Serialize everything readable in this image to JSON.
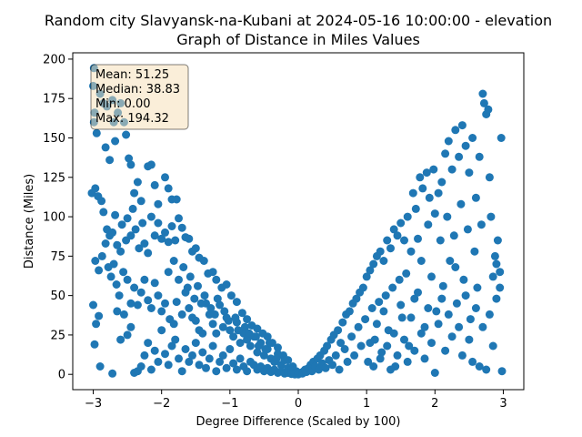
{
  "chart_data": {
    "type": "scatter",
    "title": "Random city Slavyansk-na-Kubani at 2024-05-16 10:00:00  - elevation",
    "subtitle": "Graph of Distance in Miles Values",
    "xlabel": "Degree Difference (Scaled by 100)",
    "ylabel": "Distance (Miles)",
    "xlim": [
      -3.3,
      3.3
    ],
    "ylim": [
      -9.7,
      204
    ],
    "xticks": [
      -3,
      -2,
      -1,
      0,
      1,
      2,
      3
    ],
    "yticks": [
      0,
      25,
      50,
      75,
      100,
      125,
      150,
      175,
      200
    ],
    "grid": false,
    "marker_color": "#1f77b4",
    "stats_box": {
      "lines": [
        "Mean: 51.25",
        "Median: 38.83",
        "Min: 0.00",
        "Max: 194.32"
      ],
      "placement": "top-left",
      "facecolor": "#f5deb3"
    },
    "points": [
      [
        -2.99,
        194.3
      ],
      [
        -3.0,
        183.0
      ],
      [
        -2.98,
        166.0
      ],
      [
        -2.99,
        160.0
      ],
      [
        -2.95,
        153.0
      ],
      [
        -2.9,
        178.0
      ],
      [
        -2.85,
        172.0
      ],
      [
        -2.8,
        170.0
      ],
      [
        -2.82,
        144.0
      ],
      [
        -2.76,
        136.0
      ],
      [
        -2.72,
        174.0
      ],
      [
        -2.7,
        160.0
      ],
      [
        -2.68,
        148.0
      ],
      [
        -2.64,
        166.0
      ],
      [
        -2.6,
        172.0
      ],
      [
        -2.55,
        160.0
      ],
      [
        -2.52,
        152.0
      ],
      [
        -2.48,
        137.0
      ],
      [
        -2.45,
        133.0
      ],
      [
        -2.4,
        115.0
      ],
      [
        -2.35,
        122.0
      ],
      [
        -2.3,
        110.0
      ],
      [
        -2.2,
        132.0
      ],
      [
        -2.15,
        133.0
      ],
      [
        -2.1,
        120.0
      ],
      [
        -2.05,
        108.0
      ],
      [
        -1.95,
        125.0
      ],
      [
        -1.9,
        118.0
      ],
      [
        -1.85,
        111.0
      ],
      [
        -1.78,
        111.0
      ],
      [
        -3.02,
        115.0
      ],
      [
        -2.97,
        118.0
      ],
      [
        -2.93,
        113.0
      ],
      [
        -2.88,
        110.0
      ],
      [
        -2.85,
        103.0
      ],
      [
        -2.8,
        92.0
      ],
      [
        -2.76,
        88.0
      ],
      [
        -2.72,
        90.0
      ],
      [
        -2.68,
        101.0
      ],
      [
        -2.65,
        82.0
      ],
      [
        -2.6,
        78.0
      ],
      [
        -2.58,
        95.0
      ],
      [
        -2.52,
        85.0
      ],
      [
        -2.5,
        99.0
      ],
      [
        -2.45,
        88.0
      ],
      [
        -2.42,
        105.0
      ],
      [
        -2.38,
        92.0
      ],
      [
        -2.33,
        80.0
      ],
      [
        -2.28,
        96.0
      ],
      [
        -2.25,
        83.0
      ],
      [
        -2.2,
        77.0
      ],
      [
        -2.15,
        100.0
      ],
      [
        -2.1,
        88.0
      ],
      [
        -2.05,
        96.0
      ],
      [
        -2.0,
        86.0
      ],
      [
        -1.95,
        90.0
      ],
      [
        -1.9,
        84.0
      ],
      [
        -1.85,
        94.0
      ],
      [
        -1.8,
        85.0
      ],
      [
        -1.75,
        99.0
      ],
      [
        -1.7,
        93.0
      ],
      [
        -1.65,
        87.0
      ],
      [
        -1.6,
        86.0
      ],
      [
        -1.55,
        78.0
      ],
      [
        -1.5,
        80.0
      ],
      [
        -1.45,
        74.0
      ],
      [
        -1.38,
        72.0
      ],
      [
        -1.32,
        64.0
      ],
      [
        -1.25,
        65.0
      ],
      [
        -1.2,
        60.0
      ],
      [
        -1.12,
        55.0
      ],
      [
        -1.05,
        57.0
      ],
      [
        -0.98,
        50.0
      ],
      [
        -0.9,
        46.0
      ],
      [
        -0.82,
        39.0
      ],
      [
        -0.75,
        35.0
      ],
      [
        -0.68,
        31.0
      ],
      [
        -0.6,
        29.0
      ],
      [
        -0.52,
        26.0
      ],
      [
        -0.45,
        24.0
      ],
      [
        -0.38,
        20.0
      ],
      [
        -0.3,
        17.0
      ],
      [
        -0.22,
        12.0
      ],
      [
        -0.15,
        9.0
      ],
      [
        -0.08,
        5.0
      ],
      [
        -0.03,
        2.0
      ],
      [
        -2.97,
        72.0
      ],
      [
        -2.92,
        66.0
      ],
      [
        -2.87,
        75.0
      ],
      [
        -2.82,
        83.0
      ],
      [
        -2.78,
        68.0
      ],
      [
        -2.74,
        62.0
      ],
      [
        -2.7,
        70.0
      ],
      [
        -2.66,
        57.0
      ],
      [
        -2.62,
        50.0
      ],
      [
        -2.56,
        65.0
      ],
      [
        -2.5,
        60.0
      ],
      [
        -2.45,
        45.0
      ],
      [
        -2.4,
        55.0
      ],
      [
        -2.35,
        44.0
      ],
      [
        -2.3,
        52.0
      ],
      [
        -2.25,
        60.0
      ],
      [
        -2.2,
        47.0
      ],
      [
        -2.15,
        42.0
      ],
      [
        -2.1,
        58.0
      ],
      [
        -2.05,
        50.0
      ],
      [
        -2.0,
        40.0
      ],
      [
        -1.95,
        45.0
      ],
      [
        -1.88,
        35.0
      ],
      [
        -1.82,
        32.0
      ],
      [
        -1.78,
        46.0
      ],
      [
        -1.7,
        38.0
      ],
      [
        -1.65,
        52.0
      ],
      [
        -1.6,
        42.0
      ],
      [
        -1.55,
        36.0
      ],
      [
        -1.5,
        34.0
      ],
      [
        -1.45,
        28.0
      ],
      [
        -1.4,
        26.0
      ],
      [
        -1.35,
        45.0
      ],
      [
        -1.3,
        38.0
      ],
      [
        -1.25,
        32.0
      ],
      [
        -1.2,
        26.0
      ],
      [
        -1.15,
        44.0
      ],
      [
        -1.1,
        30.0
      ],
      [
        -1.05,
        36.0
      ],
      [
        -1.0,
        28.0
      ],
      [
        -0.95,
        24.0
      ],
      [
        -0.9,
        33.0
      ],
      [
        -0.85,
        20.0
      ],
      [
        -0.8,
        26.0
      ],
      [
        -0.75,
        22.0
      ],
      [
        -0.7,
        18.0
      ],
      [
        -0.65,
        24.0
      ],
      [
        -0.6,
        14.0
      ],
      [
        -0.55,
        20.0
      ],
      [
        -0.5,
        12.0
      ],
      [
        -0.45,
        16.0
      ],
      [
        -0.4,
        10.0
      ],
      [
        -0.35,
        8.0
      ],
      [
        -0.3,
        13.0
      ],
      [
        -0.25,
        6.0
      ],
      [
        -0.2,
        9.0
      ],
      [
        -0.15,
        4.0
      ],
      [
        -0.1,
        3.0
      ],
      [
        -0.05,
        1.0
      ],
      [
        -3.0,
        44.0
      ],
      [
        -2.96,
        32.0
      ],
      [
        -2.92,
        37.0
      ],
      [
        -2.98,
        19.0
      ],
      [
        -2.9,
        5.0
      ],
      [
        -2.72,
        0.5
      ],
      [
        -2.65,
        40.0
      ],
      [
        -2.6,
        22.0
      ],
      [
        -2.55,
        38.0
      ],
      [
        -2.5,
        25.0
      ],
      [
        -2.45,
        30.0
      ],
      [
        -2.4,
        1.0
      ],
      [
        -2.35,
        2.0
      ],
      [
        -2.3,
        5.0
      ],
      [
        -2.25,
        12.0
      ],
      [
        -2.2,
        20.0
      ],
      [
        -2.15,
        3.0
      ],
      [
        -2.1,
        15.0
      ],
      [
        -2.05,
        8.0
      ],
      [
        -2.0,
        28.0
      ],
      [
        -1.95,
        13.0
      ],
      [
        -1.9,
        6.0
      ],
      [
        -1.85,
        18.0
      ],
      [
        -1.8,
        22.0
      ],
      [
        -1.75,
        10.0
      ],
      [
        -1.7,
        2.0
      ],
      [
        -1.65,
        16.0
      ],
      [
        -1.6,
        8.0
      ],
      [
        -1.55,
        12.0
      ],
      [
        -1.5,
        20.0
      ],
      [
        -1.45,
        6.0
      ],
      [
        -1.4,
        14.0
      ],
      [
        -1.35,
        4.0
      ],
      [
        -1.3,
        10.0
      ],
      [
        -1.25,
        18.0
      ],
      [
        -1.2,
        2.0
      ],
      [
        -1.15,
        8.0
      ],
      [
        -1.1,
        12.0
      ],
      [
        -1.05,
        4.0
      ],
      [
        -1.0,
        16.0
      ],
      [
        -0.95,
        7.0
      ],
      [
        -0.9,
        3.0
      ],
      [
        -0.85,
        10.0
      ],
      [
        -0.8,
        5.0
      ],
      [
        -0.75,
        2.0
      ],
      [
        -0.7,
        8.0
      ],
      [
        -0.65,
        6.0
      ],
      [
        -0.6,
        3.0
      ],
      [
        -0.55,
        5.0
      ],
      [
        -0.5,
        2.0
      ],
      [
        -0.45,
        4.0
      ],
      [
        -0.4,
        1.5
      ],
      [
        -0.35,
        3.0
      ],
      [
        -0.3,
        1.0
      ],
      [
        -0.25,
        2.0
      ],
      [
        -0.2,
        0.5
      ],
      [
        -0.15,
        1.0
      ],
      [
        -0.1,
        0.3
      ],
      [
        -0.05,
        0.0
      ],
      [
        0.0,
        0.0
      ],
      [
        -1.9,
        65.0
      ],
      [
        -1.82,
        72.0
      ],
      [
        -1.75,
        60.0
      ],
      [
        -1.68,
        68.0
      ],
      [
        -1.62,
        55.0
      ],
      [
        -1.58,
        62.0
      ],
      [
        -1.52,
        48.0
      ],
      [
        -1.47,
        56.0
      ],
      [
        -1.42,
        45.0
      ],
      [
        -1.37,
        50.0
      ],
      [
        -1.28,
        42.0
      ],
      [
        -1.22,
        38.0
      ],
      [
        -1.18,
        48.0
      ],
      [
        -1.08,
        40.0
      ],
      [
        -1.02,
        34.0
      ],
      [
        -0.92,
        36.0
      ],
      [
        -0.88,
        28.0
      ],
      [
        -0.78,
        30.0
      ],
      [
        -0.72,
        26.0
      ],
      [
        -0.62,
        24.0
      ],
      [
        -0.58,
        18.0
      ],
      [
        -0.48,
        16.0
      ],
      [
        -0.42,
        20.0
      ],
      [
        -0.32,
        10.0
      ],
      [
        0.03,
        1.0
      ],
      [
        0.06,
        0.5
      ],
      [
        0.08,
        2.0
      ],
      [
        0.1,
        3.0
      ],
      [
        0.12,
        1.5
      ],
      [
        0.15,
        4.0
      ],
      [
        0.18,
        6.0
      ],
      [
        0.2,
        2.0
      ],
      [
        0.22,
        8.0
      ],
      [
        0.25,
        5.0
      ],
      [
        0.28,
        10.0
      ],
      [
        0.3,
        3.0
      ],
      [
        0.32,
        12.0
      ],
      [
        0.35,
        7.0
      ],
      [
        0.38,
        15.0
      ],
      [
        0.4,
        4.0
      ],
      [
        0.42,
        18.0
      ],
      [
        0.45,
        9.0
      ],
      [
        0.48,
        22.0
      ],
      [
        0.5,
        6.0
      ],
      [
        0.52,
        25.0
      ],
      [
        0.55,
        12.0
      ],
      [
        0.58,
        28.0
      ],
      [
        0.6,
        3.0
      ],
      [
        0.62,
        20.0
      ],
      [
        0.65,
        33.0
      ],
      [
        0.68,
        16.0
      ],
      [
        0.7,
        38.0
      ],
      [
        0.72,
        8.0
      ],
      [
        0.75,
        40.0
      ],
      [
        0.78,
        24.0
      ],
      [
        0.8,
        45.0
      ],
      [
        0.82,
        12.0
      ],
      [
        0.85,
        48.0
      ],
      [
        0.88,
        30.0
      ],
      [
        0.9,
        52.0
      ],
      [
        0.92,
        18.0
      ],
      [
        0.95,
        55.0
      ],
      [
        0.98,
        35.0
      ],
      [
        1.0,
        62.0
      ],
      [
        1.02,
        8.0
      ],
      [
        1.05,
        66.0
      ],
      [
        1.08,
        42.0
      ],
      [
        1.1,
        70.0
      ],
      [
        1.12,
        22.0
      ],
      [
        1.15,
        75.0
      ],
      [
        1.18,
        46.0
      ],
      [
        1.2,
        78.0
      ],
      [
        1.22,
        14.0
      ],
      [
        1.25,
        72.0
      ],
      [
        1.28,
        50.0
      ],
      [
        1.3,
        85.0
      ],
      [
        1.32,
        28.0
      ],
      [
        1.35,
        80.0
      ],
      [
        1.38,
        55.0
      ],
      [
        1.4,
        92.0
      ],
      [
        1.42,
        5.0
      ],
      [
        1.45,
        88.0
      ],
      [
        1.48,
        60.0
      ],
      [
        1.5,
        96.0
      ],
      [
        1.52,
        36.0
      ],
      [
        1.55,
        85.0
      ],
      [
        1.58,
        64.0
      ],
      [
        1.6,
        100.0
      ],
      [
        1.62,
        18.0
      ],
      [
        1.65,
        78.0
      ],
      [
        1.68,
        115.0
      ],
      [
        1.7,
        48.0
      ],
      [
        1.72,
        105.0
      ],
      [
        1.75,
        86.0
      ],
      [
        1.78,
        125.0
      ],
      [
        1.8,
        72.0
      ],
      [
        1.82,
        118.0
      ],
      [
        1.85,
        30.0
      ],
      [
        1.88,
        128.0
      ],
      [
        1.9,
        95.0
      ],
      [
        1.92,
        112.0
      ],
      [
        1.95,
        62.0
      ],
      [
        1.98,
        130.0
      ],
      [
        2.0,
        102.0
      ],
      [
        2.02,
        40.0
      ],
      [
        2.05,
        115.0
      ],
      [
        2.08,
        85.0
      ],
      [
        2.1,
        122.0
      ],
      [
        2.12,
        56.0
      ],
      [
        2.15,
        140.0
      ],
      [
        2.18,
        100.0
      ],
      [
        2.2,
        148.0
      ],
      [
        2.22,
        72.0
      ],
      [
        2.25,
        130.0
      ],
      [
        2.28,
        88.0
      ],
      [
        2.3,
        155.0
      ],
      [
        2.32,
        45.0
      ],
      [
        2.35,
        138.0
      ],
      [
        2.38,
        108.0
      ],
      [
        2.4,
        158.0
      ],
      [
        2.42,
        60.0
      ],
      [
        2.45,
        145.0
      ],
      [
        2.48,
        92.0
      ],
      [
        2.5,
        128.0
      ],
      [
        2.52,
        35.0
      ],
      [
        2.55,
        150.0
      ],
      [
        2.58,
        78.0
      ],
      [
        2.6,
        112.0
      ],
      [
        2.62,
        55.0
      ],
      [
        2.65,
        138.0
      ],
      [
        2.68,
        95.0
      ],
      [
        2.7,
        178.0
      ],
      [
        2.72,
        172.0
      ],
      [
        2.75,
        165.0
      ],
      [
        2.78,
        168.0
      ],
      [
        2.8,
        125.0
      ],
      [
        2.82,
        100.0
      ],
      [
        2.85,
        62.0
      ],
      [
        2.88,
        75.0
      ],
      [
        2.9,
        48.0
      ],
      [
        2.92,
        85.0
      ],
      [
        2.95,
        55.0
      ],
      [
        2.97,
        150.0
      ],
      [
        2.98,
        2.0
      ],
      [
        1.05,
        20.0
      ],
      [
        1.1,
        5.0
      ],
      [
        1.15,
        32.0
      ],
      [
        1.2,
        10.0
      ],
      [
        1.25,
        40.0
      ],
      [
        1.3,
        18.0
      ],
      [
        1.35,
        3.0
      ],
      [
        1.4,
        26.0
      ],
      [
        1.45,
        12.0
      ],
      [
        1.5,
        44.0
      ],
      [
        1.55,
        22.0
      ],
      [
        1.6,
        8.0
      ],
      [
        1.65,
        36.0
      ],
      [
        1.7,
        15.0
      ],
      [
        1.75,
        52.0
      ],
      [
        1.8,
        26.0
      ],
      [
        1.85,
        10.0
      ],
      [
        1.9,
        42.0
      ],
      [
        1.95,
        20.0
      ],
      [
        2.0,
        1.0
      ],
      [
        2.05,
        32.0
      ],
      [
        2.1,
        48.0
      ],
      [
        2.15,
        15.0
      ],
      [
        2.2,
        38.0
      ],
      [
        2.25,
        24.0
      ],
      [
        2.3,
        68.0
      ],
      [
        2.35,
        30.0
      ],
      [
        2.4,
        12.0
      ],
      [
        2.45,
        50.0
      ],
      [
        2.5,
        22.0
      ],
      [
        2.55,
        8.0
      ],
      [
        2.6,
        42.0
      ],
      [
        2.65,
        5.0
      ],
      [
        2.7,
        30.0
      ],
      [
        2.75,
        3.0
      ],
      [
        2.8,
        38.0
      ],
      [
        2.85,
        18.0
      ],
      [
        2.9,
        70.0
      ],
      [
        2.95,
        65.0
      ]
    ]
  }
}
